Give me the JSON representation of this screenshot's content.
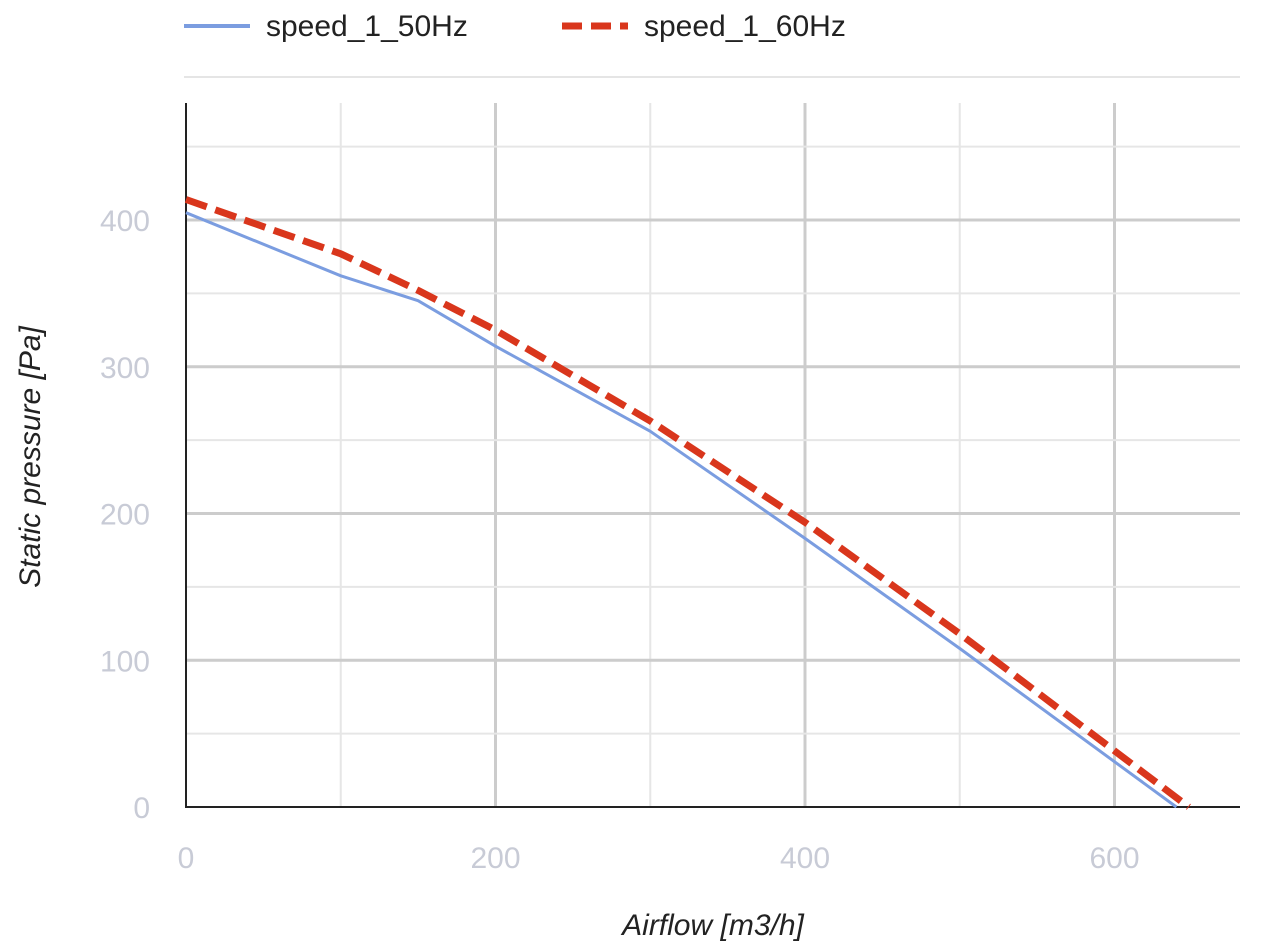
{
  "chart_data": {
    "type": "line",
    "title": "",
    "xlabel": "Airflow [m3/h]",
    "ylabel": "Static pressure [Pa]",
    "xlim": [
      0,
      680
    ],
    "ylim": [
      0,
      480
    ],
    "x_ticks": [
      "0",
      "200",
      "400",
      "600"
    ],
    "y_ticks": [
      "0",
      "100",
      "200",
      "300",
      "400"
    ],
    "grid": true,
    "legend_position": "top",
    "series": [
      {
        "name": "speed_1_50Hz",
        "color": "#7b9de0",
        "style": "solid",
        "points": [
          [
            0,
            405
          ],
          [
            100,
            362
          ],
          [
            150,
            345
          ],
          [
            200,
            314
          ],
          [
            300,
            256
          ],
          [
            400,
            183
          ],
          [
            500,
            108
          ],
          [
            640,
            0
          ]
        ]
      },
      {
        "name": "speed_1_60Hz",
        "color": "#d9361c",
        "style": "dashed",
        "points": [
          [
            0,
            414
          ],
          [
            100,
            377
          ],
          [
            150,
            352
          ],
          [
            200,
            325
          ],
          [
            300,
            263
          ],
          [
            400,
            194
          ],
          [
            500,
            118
          ],
          [
            648,
            0
          ]
        ]
      }
    ]
  }
}
